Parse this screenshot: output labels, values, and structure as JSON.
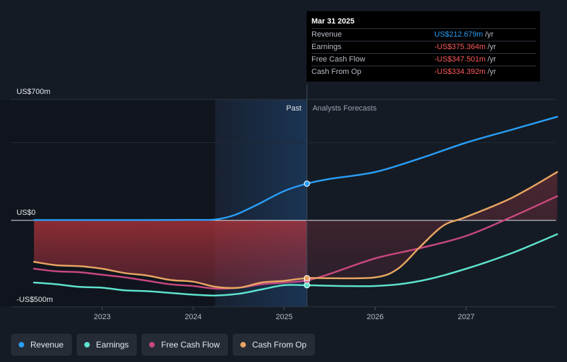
{
  "tooltip": {
    "date": "Mar 31 2025",
    "rows": [
      {
        "label": "Revenue",
        "value": "US$212.679m",
        "unit": "/yr",
        "negative": false
      },
      {
        "label": "Earnings",
        "value": "-US$375.364m",
        "unit": "/yr",
        "negative": true
      },
      {
        "label": "Free Cash Flow",
        "value": "-US$347.501m",
        "unit": "/yr",
        "negative": true
      },
      {
        "label": "Cash From Op",
        "value": "-US$334.392m",
        "unit": "/yr",
        "negative": true
      }
    ]
  },
  "legend": [
    {
      "name": "Revenue",
      "color": "#2a9df4"
    },
    {
      "name": "Earnings",
      "color": "#5ee3cf"
    },
    {
      "name": "Free Cash Flow",
      "color": "#c8487f"
    },
    {
      "name": "Cash From Op",
      "color": "#e8a562"
    }
  ],
  "chart_data": {
    "type": "line",
    "past_label": "Past",
    "forecast_label": "Analysts Forecasts",
    "y_tick_labels": [
      {
        "value": 700,
        "label": "US$700m"
      },
      {
        "value": 0,
        "label": "US$0"
      },
      {
        "value": -500,
        "label": "-US$500m"
      }
    ],
    "x_tick_labels": [
      "2023",
      "2024",
      "2025",
      "2026",
      "2027"
    ],
    "xlim": [
      2022.25,
      2028.0
    ],
    "ylim": [
      -500,
      700
    ],
    "divider_x": 2025.25,
    "past_shade_start": 2024.24,
    "series": [
      {
        "name": "Revenue",
        "color": "#2a9df4",
        "points": [
          [
            2022.25,
            2
          ],
          [
            2023.0,
            2
          ],
          [
            2024.0,
            3
          ],
          [
            2024.24,
            5
          ],
          [
            2024.45,
            30
          ],
          [
            2024.7,
            90
          ],
          [
            2025.0,
            170
          ],
          [
            2025.25,
            212.7
          ],
          [
            2025.5,
            240
          ],
          [
            2026.0,
            280
          ],
          [
            2026.5,
            360
          ],
          [
            2027.0,
            450
          ],
          [
            2027.5,
            525
          ],
          [
            2028.0,
            600
          ]
        ]
      },
      {
        "name": "Earnings",
        "color": "#5ee3cf",
        "points": [
          [
            2022.25,
            -360
          ],
          [
            2022.5,
            -370
          ],
          [
            2022.75,
            -385
          ],
          [
            2023.0,
            -390
          ],
          [
            2023.25,
            -405
          ],
          [
            2023.5,
            -410
          ],
          [
            2023.75,
            -420
          ],
          [
            2024.0,
            -430
          ],
          [
            2024.25,
            -435
          ],
          [
            2024.5,
            -425
          ],
          [
            2024.75,
            -400
          ],
          [
            2025.0,
            -375
          ],
          [
            2025.25,
            -375.4
          ],
          [
            2026.0,
            -380
          ],
          [
            2026.5,
            -350
          ],
          [
            2027.0,
            -280
          ],
          [
            2027.5,
            -190
          ],
          [
            2028.0,
            -80
          ]
        ]
      },
      {
        "name": "Free Cash Flow",
        "color": "#c8487f",
        "points": [
          [
            2022.25,
            -280
          ],
          [
            2022.5,
            -295
          ],
          [
            2022.75,
            -300
          ],
          [
            2023.0,
            -315
          ],
          [
            2023.25,
            -330
          ],
          [
            2023.5,
            -350
          ],
          [
            2023.75,
            -370
          ],
          [
            2024.0,
            -380
          ],
          [
            2024.25,
            -395
          ],
          [
            2024.5,
            -390
          ],
          [
            2024.75,
            -370
          ],
          [
            2025.0,
            -360
          ],
          [
            2025.25,
            -347.5
          ],
          [
            2025.5,
            -310
          ],
          [
            2026.0,
            -220
          ],
          [
            2026.5,
            -160
          ],
          [
            2027.0,
            -90
          ],
          [
            2027.5,
            20
          ],
          [
            2028.0,
            140
          ]
        ]
      },
      {
        "name": "Cash From Op",
        "color": "#e8a562",
        "points": [
          [
            2022.25,
            -240
          ],
          [
            2022.5,
            -260
          ],
          [
            2022.75,
            -265
          ],
          [
            2023.0,
            -280
          ],
          [
            2023.25,
            -305
          ],
          [
            2023.5,
            -320
          ],
          [
            2023.75,
            -345
          ],
          [
            2024.0,
            -355
          ],
          [
            2024.25,
            -385
          ],
          [
            2024.5,
            -390
          ],
          [
            2024.75,
            -360
          ],
          [
            2025.0,
            -350
          ],
          [
            2025.25,
            -334.4
          ],
          [
            2025.5,
            -335
          ],
          [
            2026.0,
            -330
          ],
          [
            2026.25,
            -280
          ],
          [
            2026.5,
            -150
          ],
          [
            2026.75,
            -30
          ],
          [
            2027.0,
            20
          ],
          [
            2027.5,
            130
          ],
          [
            2028.0,
            280
          ]
        ]
      }
    ]
  }
}
